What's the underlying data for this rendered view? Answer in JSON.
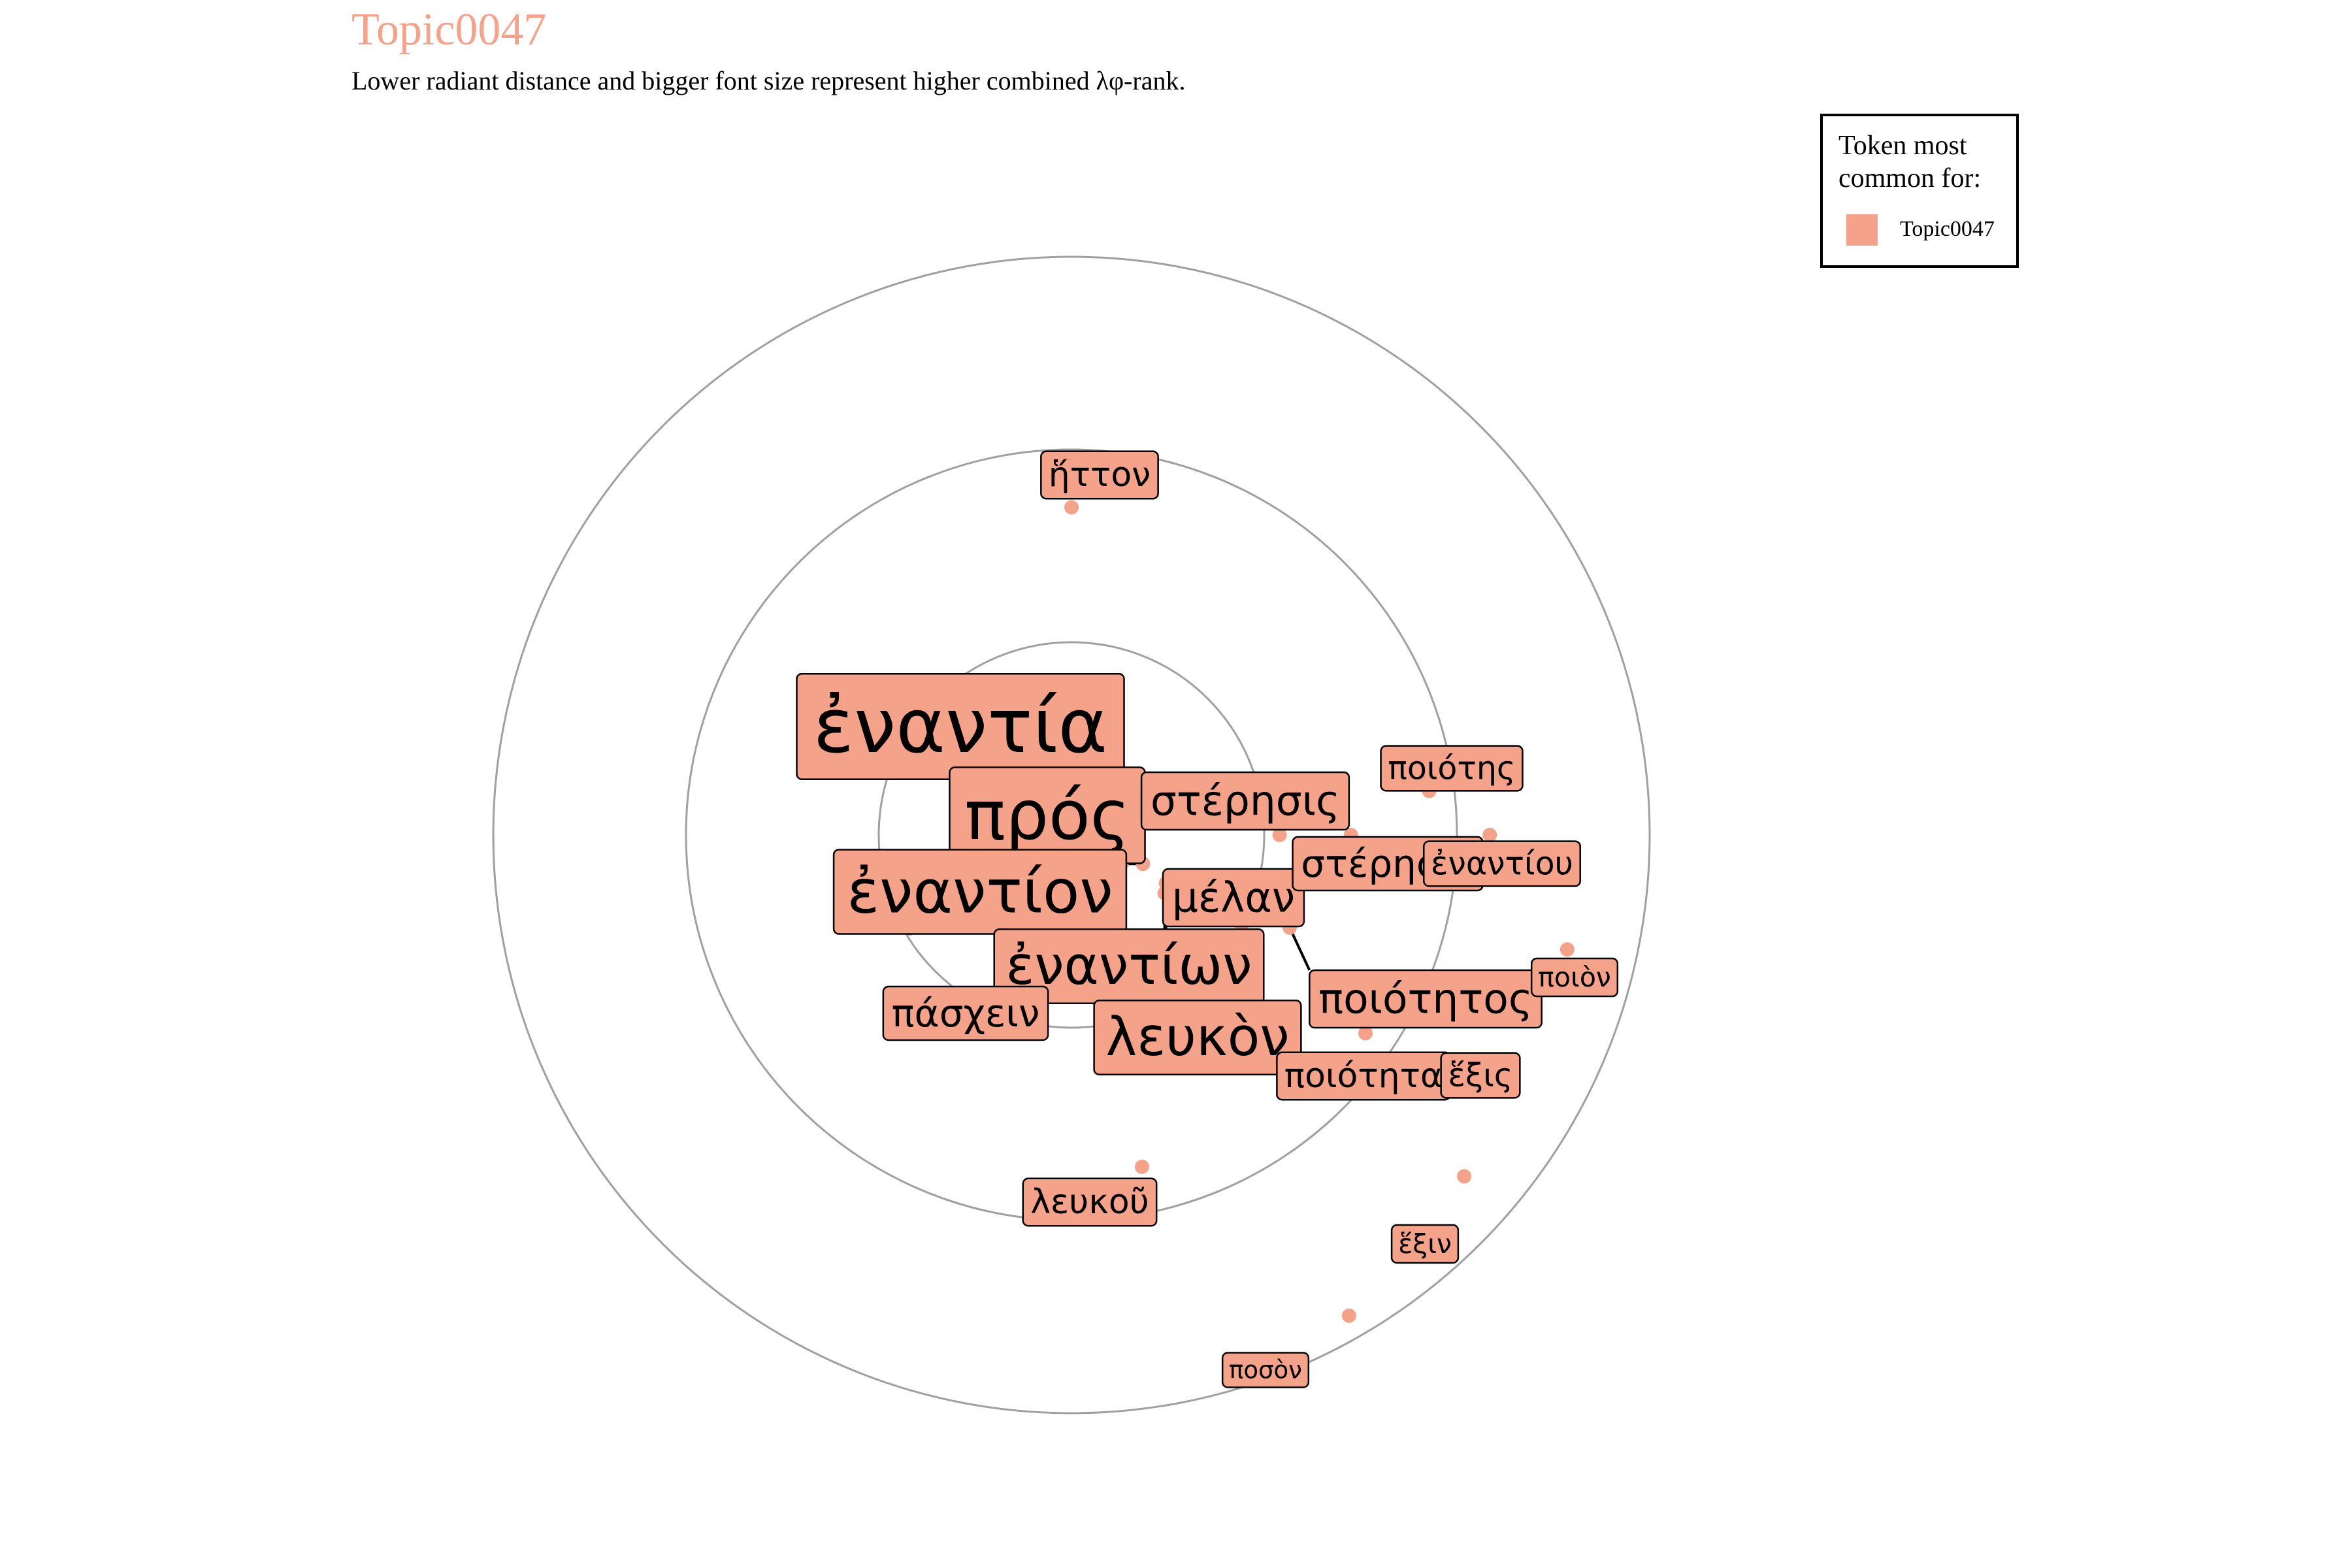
{
  "title": "Topic0047",
  "subtitle": "Lower radiant distance and bigger font size represent higher combined λφ-rank.",
  "legend": {
    "title": "Token most common for:",
    "label": "Topic0047",
    "color": "#F4A28A"
  },
  "colors": {
    "accent": "#F4A28A",
    "ring": "#A0A0A0"
  },
  "chart_data": {
    "type": "scatter",
    "coordinate_system": "polar",
    "rings": [
      1,
      2,
      3
    ],
    "radial_range": [
      0,
      3
    ],
    "grid": true,
    "legend_placement": "top-right",
    "tokens": [
      {
        "token": "ἐναντία",
        "angle_deg": 136,
        "radius": 0.25,
        "size": 10
      },
      {
        "token": "πρός",
        "angle_deg": 120,
        "radius": 0.3,
        "size": 9
      },
      {
        "token": "ἐναντίον",
        "angle_deg": 112,
        "radius": 0.4,
        "size": 8
      },
      {
        "token": "ἐναντίων",
        "angle_deg": 117,
        "radius": 0.55,
        "size": 7
      },
      {
        "token": "λευκὸν",
        "angle_deg": 122,
        "radius": 0.57,
        "size": 7
      },
      {
        "token": "μέλαν",
        "angle_deg": 118,
        "radius": 1.0,
        "size": 5.5
      },
      {
        "token": "στέρησις",
        "angle_deg": 90,
        "radius": 1.08,
        "size": 5.5
      },
      {
        "token": "ποιότητος",
        "angle_deg": 113,
        "radius": 1.23,
        "size": 5.5
      },
      {
        "token": "πάσχειν",
        "angle_deg": 240,
        "radius": 0.97,
        "size": 5
      },
      {
        "token": "στέρησιν",
        "angle_deg": 90,
        "radius": 1.45,
        "size": 5
      },
      {
        "token": "ποιότητα",
        "angle_deg": 124,
        "radius": 1.84,
        "size": 4.5
      },
      {
        "token": "λευκοῦ",
        "angle_deg": 168,
        "radius": 1.76,
        "size": 4.5
      },
      {
        "token": "ἥττον",
        "angle_deg": 0,
        "radius": 1.7,
        "size": 4.5
      },
      {
        "token": "ποιότης",
        "angle_deg": 83,
        "radius": 1.87,
        "size": 4.3
      },
      {
        "token": "ἐναντίου",
        "angle_deg": 90,
        "radius": 2.17,
        "size": 4.3
      },
      {
        "token": "ἕξις",
        "angle_deg": 110,
        "radius": 2.2,
        "size": 4.3
      },
      {
        "token": "ποιὸν",
        "angle_deg": 103,
        "radius": 2.64,
        "size": 3.6
      },
      {
        "token": "ἕξιν",
        "angle_deg": 131,
        "radius": 2.7,
        "size": 3.6
      },
      {
        "token": "ποσὸν",
        "angle_deg": 150,
        "radius": 2.88,
        "size": 3.2
      }
    ]
  }
}
